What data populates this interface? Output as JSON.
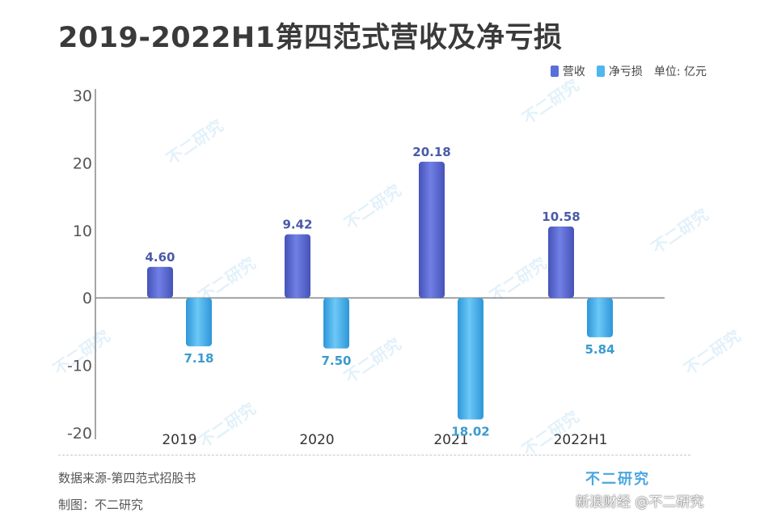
{
  "title": "2019-2022H1第四范式营收及净亏损",
  "legend": {
    "revenue": "营收",
    "net_loss": "净亏损",
    "unit": "单位: 亿元"
  },
  "source": "数据来源-第四范式招股书",
  "maker": "制图：不二研究",
  "brand": "不二研究",
  "watermark_text": "不二研究",
  "corner_watermark": "新浪财经 @不二研究",
  "colors": {
    "revenue": "#5b6fd8",
    "revenue_dark": "#4553b8",
    "revenue_label": "#4a5aa8",
    "loss": "#4fb6f0",
    "loss_dark": "#2e96d8",
    "loss_label": "#3a9ad0",
    "axis": "#888888"
  },
  "chart_data": {
    "type": "bar",
    "title": "2019-2022H1第四范式营收及净亏损",
    "categories": [
      "2019",
      "2020",
      "2021",
      "2022H1"
    ],
    "series": [
      {
        "name": "营收",
        "values": [
          4.6,
          9.42,
          20.18,
          10.58
        ],
        "labels": [
          "4.60",
          "9.42",
          "20.18",
          "10.58"
        ]
      },
      {
        "name": "净亏损",
        "values": [
          -7.18,
          -7.5,
          -18.02,
          -5.84
        ],
        "labels": [
          "7.18",
          "7.50",
          "18.02",
          "5.84"
        ]
      }
    ],
    "yticks": [
      30,
      20,
      10,
      0,
      -10,
      -20
    ],
    "ylim": [
      -20,
      30
    ],
    "xlabel": "",
    "ylabel": "",
    "unit": "亿元",
    "legend_position": "top-right"
  }
}
